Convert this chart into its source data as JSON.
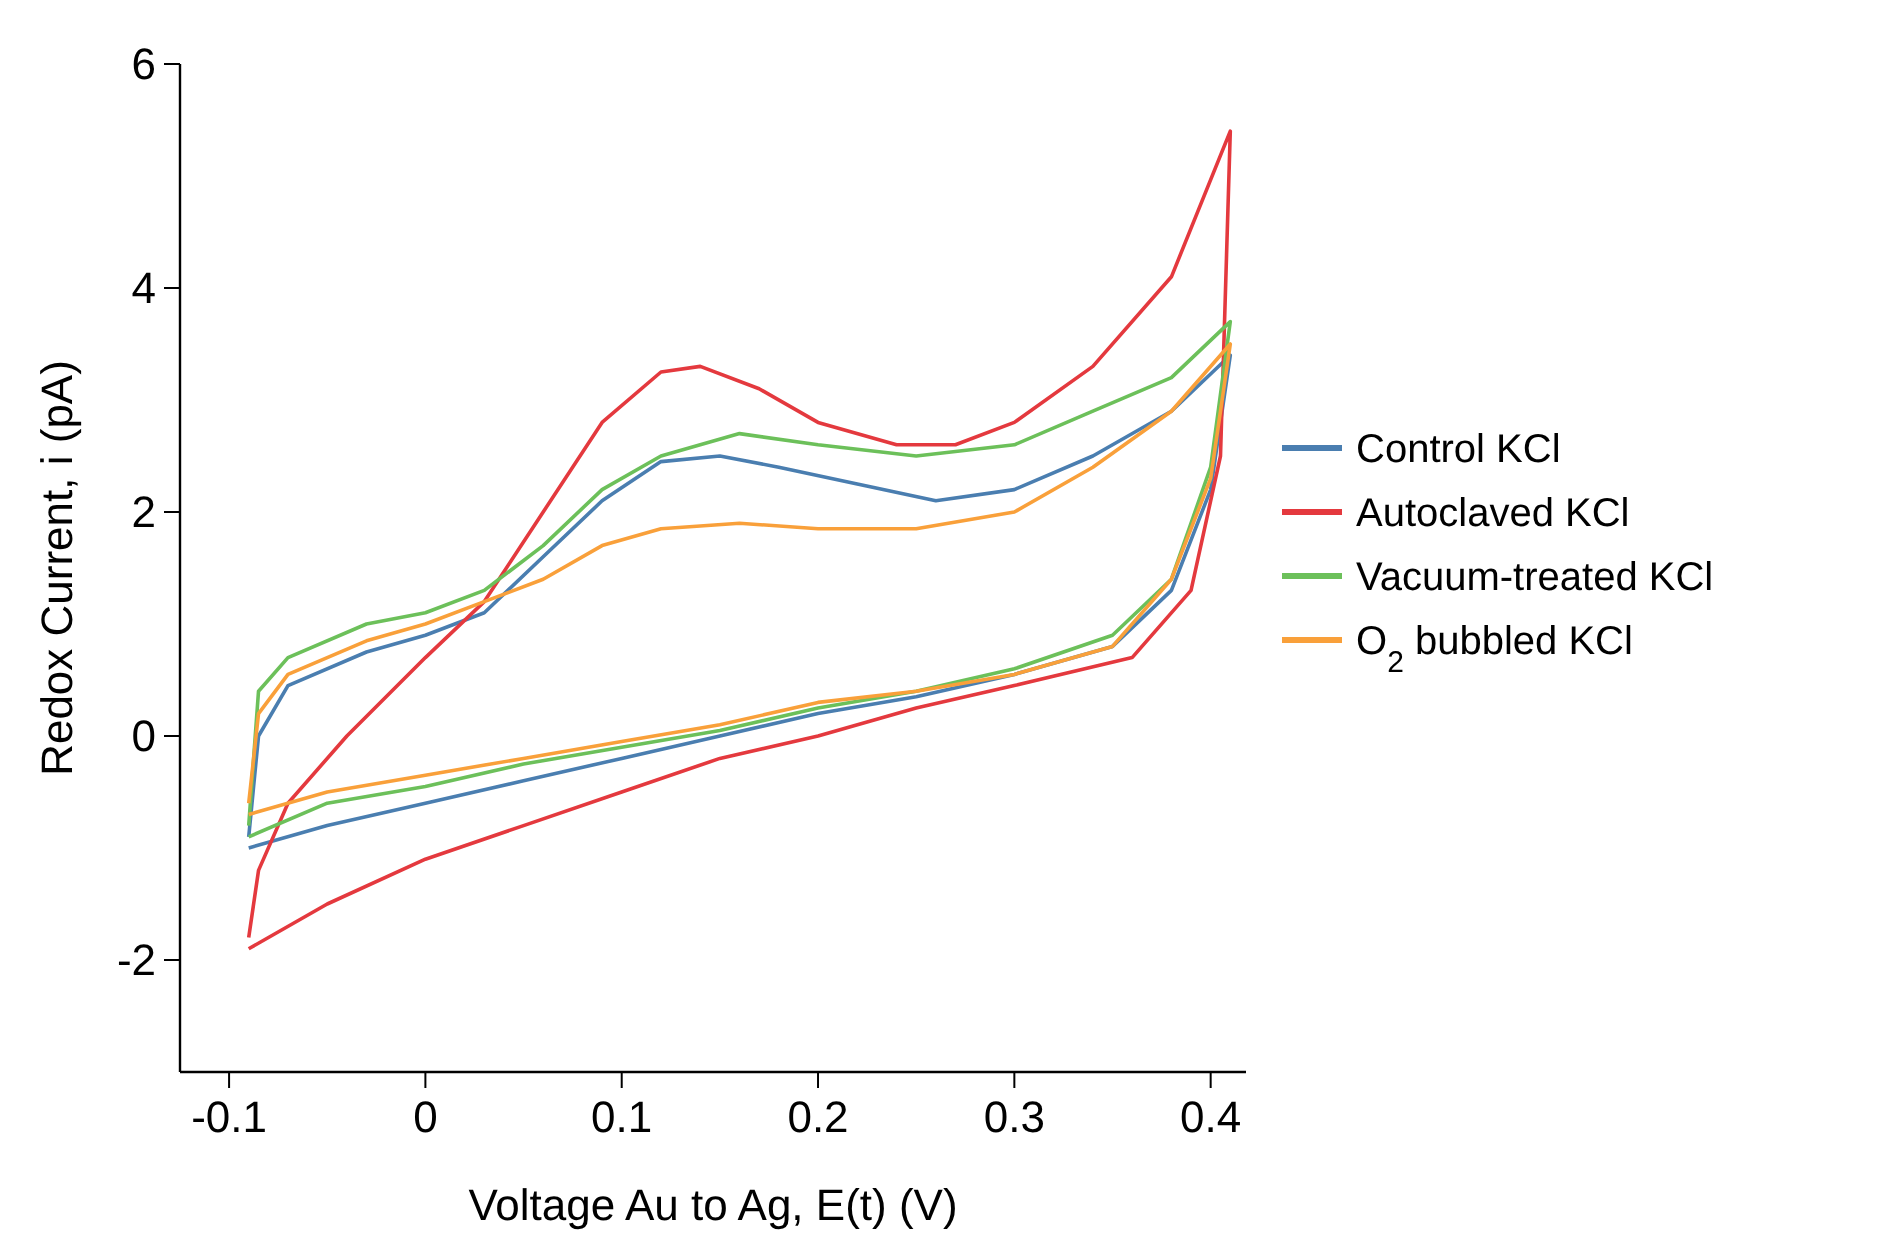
{
  "chart_data": {
    "type": "line",
    "xlabel": "Voltage Au to Ag, E(t) (V)",
    "ylabel": "Redox Current, i (pA)",
    "xlim": [
      -0.125,
      0.418
    ],
    "xticks": [
      -0.1,
      0,
      0.1,
      0.2,
      0.3,
      0.4
    ],
    "ylim": [
      -3,
      6
    ],
    "yticks": [
      -2,
      0,
      2,
      4,
      6
    ],
    "grid": false,
    "legend": "right",
    "marker": "none",
    "line_style": "solid",
    "series": [
      {
        "name": "Control KCl",
        "color": "#4a7eb0",
        "x": [
          -0.09,
          -0.085,
          -0.07,
          -0.03,
          0,
          0.03,
          0.06,
          0.09,
          0.12,
          0.15,
          0.18,
          0.22,
          0.26,
          0.3,
          0.34,
          0.38,
          0.41,
          0.4,
          0.38,
          0.35,
          0.3,
          0.25,
          0.2,
          0.15,
          0.1,
          0.05,
          0,
          -0.05,
          -0.09
        ],
        "values": [
          -0.9,
          0.0,
          0.45,
          0.75,
          0.9,
          1.1,
          1.6,
          2.1,
          2.45,
          2.5,
          2.4,
          2.25,
          2.1,
          2.2,
          2.5,
          2.9,
          3.4,
          2.2,
          1.3,
          0.8,
          0.55,
          0.35,
          0.2,
          0.0,
          -0.2,
          -0.4,
          -0.6,
          -0.8,
          -1.0
        ]
      },
      {
        "name": "Autoclaved KCl",
        "color": "#e4393e",
        "x": [
          -0.09,
          -0.085,
          -0.07,
          -0.04,
          0,
          0.03,
          0.06,
          0.09,
          0.12,
          0.14,
          0.17,
          0.2,
          0.24,
          0.27,
          0.3,
          0.34,
          0.38,
          0.41,
          0.405,
          0.39,
          0.36,
          0.3,
          0.25,
          0.2,
          0.15,
          0.1,
          0.05,
          0,
          -0.05,
          -0.09
        ],
        "values": [
          -1.8,
          -1.2,
          -0.6,
          0.0,
          0.7,
          1.2,
          2.0,
          2.8,
          3.25,
          3.3,
          3.1,
          2.8,
          2.6,
          2.6,
          2.8,
          3.3,
          4.1,
          5.4,
          2.5,
          1.3,
          0.7,
          0.45,
          0.25,
          0.0,
          -0.2,
          -0.5,
          -0.8,
          -1.1,
          -1.5,
          -1.9
        ]
      },
      {
        "name": "Vacuum-treated KCl",
        "color": "#6cc05a",
        "x": [
          -0.09,
          -0.085,
          -0.07,
          -0.03,
          0,
          0.03,
          0.06,
          0.09,
          0.12,
          0.16,
          0.2,
          0.25,
          0.3,
          0.34,
          0.38,
          0.41,
          0.4,
          0.38,
          0.35,
          0.3,
          0.25,
          0.2,
          0.15,
          0.1,
          0.05,
          0,
          -0.05,
          -0.09
        ],
        "values": [
          -0.8,
          0.4,
          0.7,
          1.0,
          1.1,
          1.3,
          1.7,
          2.2,
          2.5,
          2.7,
          2.6,
          2.5,
          2.6,
          2.9,
          3.2,
          3.7,
          2.4,
          1.4,
          0.9,
          0.6,
          0.4,
          0.25,
          0.05,
          -0.1,
          -0.25,
          -0.45,
          -0.6,
          -0.9
        ]
      },
      {
        "name": "O$_{2}$ bubbled KCl",
        "color": "#f9a03a",
        "x": [
          -0.09,
          -0.085,
          -0.07,
          -0.03,
          0,
          0.03,
          0.06,
          0.09,
          0.12,
          0.16,
          0.2,
          0.25,
          0.3,
          0.34,
          0.38,
          0.41,
          0.4,
          0.38,
          0.35,
          0.3,
          0.25,
          0.2,
          0.15,
          0.1,
          0.05,
          0,
          -0.05,
          -0.09
        ],
        "values": [
          -0.6,
          0.2,
          0.55,
          0.85,
          1.0,
          1.2,
          1.4,
          1.7,
          1.85,
          1.9,
          1.85,
          1.85,
          2.0,
          2.4,
          2.9,
          3.5,
          2.3,
          1.4,
          0.8,
          0.55,
          0.4,
          0.3,
          0.1,
          -0.05,
          -0.2,
          -0.35,
          -0.5,
          -0.7
        ]
      }
    ]
  }
}
